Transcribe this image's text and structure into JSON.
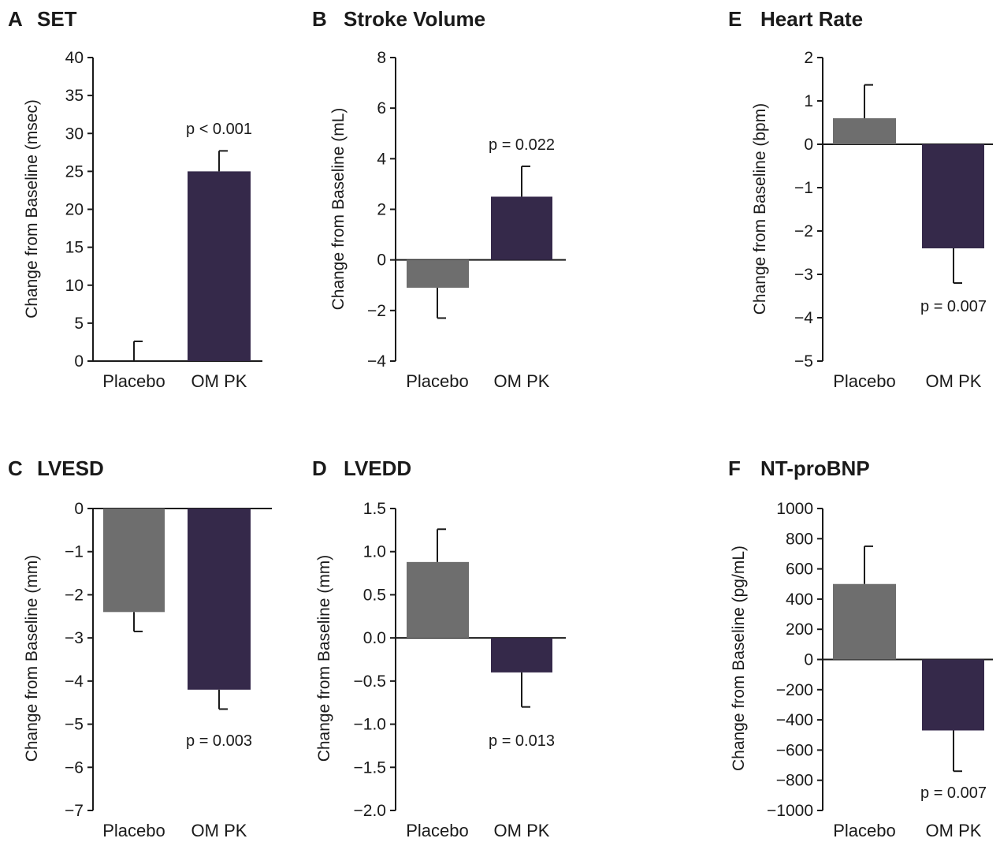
{
  "chart_data": [
    {
      "panel": "A",
      "title": "SET",
      "type": "bar",
      "ylabel": "Change from Baseline (msec)",
      "ylim": [
        0,
        40
      ],
      "yticks": [
        0,
        5,
        10,
        15,
        20,
        25,
        30,
        35,
        40
      ],
      "ytick_labels": [
        "0",
        "5",
        "10",
        "15",
        "20",
        "25",
        "30",
        "35",
        "40"
      ],
      "categories": [
        "Placebo",
        "OM PK"
      ],
      "values": [
        0.0,
        25.0
      ],
      "errors": [
        2.6,
        2.7
      ],
      "bar_colors": [
        "#6e6e6e",
        "#35294a"
      ],
      "annotation": "p < 0.001"
    },
    {
      "panel": "B",
      "title": "Stroke Volume",
      "type": "bar",
      "ylabel": "Change from Baseline (mL)",
      "ylim": [
        -4,
        8
      ],
      "yticks": [
        -4,
        -2,
        0,
        2,
        4,
        6,
        8
      ],
      "ytick_labels": [
        "−4",
        "−2",
        "0",
        "2",
        "4",
        "6",
        "8"
      ],
      "categories": [
        "Placebo",
        "OM PK"
      ],
      "values": [
        -1.1,
        2.5
      ],
      "errors": [
        1.2,
        1.2
      ],
      "bar_colors": [
        "#6e6e6e",
        "#35294a"
      ],
      "annotation": "p = 0.022"
    },
    {
      "panel": "E",
      "title": "Heart Rate",
      "type": "bar",
      "ylabel": "Change from Baseline (bpm)",
      "ylim": [
        -5,
        2
      ],
      "yticks": [
        -5,
        -4,
        -3,
        -2,
        -1,
        0,
        1,
        2
      ],
      "ytick_labels": [
        "−5",
        "−4",
        "−3",
        "−2",
        "−1",
        "0",
        "1",
        "2"
      ],
      "categories": [
        "Placebo",
        "OM PK"
      ],
      "values": [
        0.6,
        -2.4
      ],
      "errors": [
        0.77,
        0.8
      ],
      "bar_colors": [
        "#6e6e6e",
        "#35294a"
      ],
      "annotation": "p = 0.007"
    },
    {
      "panel": "C",
      "title": "LVESD",
      "type": "bar",
      "ylabel": "Change from Baseline (mm)",
      "ylim": [
        -7,
        0
      ],
      "yticks": [
        -7,
        -6,
        -5,
        -4,
        -3,
        -2,
        -1,
        0
      ],
      "ytick_labels": [
        "−7",
        "−6",
        "−5",
        "−4",
        "−3",
        "−2",
        "−1",
        "0"
      ],
      "categories": [
        "Placebo",
        "OM PK"
      ],
      "values": [
        -2.4,
        -4.2
      ],
      "errors": [
        0.45,
        0.45
      ],
      "bar_colors": [
        "#6e6e6e",
        "#35294a"
      ],
      "annotation": "p = 0.003"
    },
    {
      "panel": "D",
      "title": "LVEDD",
      "type": "bar",
      "ylabel": "Change from Baseline (mm)",
      "ylim": [
        -2.0,
        1.5
      ],
      "yticks": [
        -2.0,
        -1.5,
        -1.0,
        -0.5,
        0.0,
        0.5,
        1.0,
        1.5
      ],
      "ytick_labels": [
        "−2.0",
        "−1.5",
        "−1.0",
        "−0.5",
        "0.0",
        "0.5",
        "1.0",
        "1.5"
      ],
      "categories": [
        "Placebo",
        "OM PK"
      ],
      "values": [
        0.88,
        -0.4
      ],
      "errors": [
        0.38,
        0.4
      ],
      "bar_colors": [
        "#6e6e6e",
        "#35294a"
      ],
      "annotation": "p = 0.013"
    },
    {
      "panel": "F",
      "title": "NT-proBNP",
      "type": "bar",
      "ylabel": "Change from Baseline (pg/mL)",
      "ylim": [
        -1000,
        1000
      ],
      "yticks": [
        -1000,
        -800,
        -600,
        -400,
        -200,
        0,
        200,
        400,
        600,
        800,
        1000
      ],
      "ytick_labels": [
        "−1000",
        "−800",
        "−600",
        "−400",
        "−200",
        "0",
        "200",
        "400",
        "600",
        "800",
        "1000"
      ],
      "categories": [
        "Placebo",
        "OM PK"
      ],
      "values": [
        500,
        -470
      ],
      "errors": [
        250,
        270
      ],
      "bar_colors": [
        "#6e6e6e",
        "#35294a"
      ],
      "annotation": "p = 0.007"
    }
  ]
}
